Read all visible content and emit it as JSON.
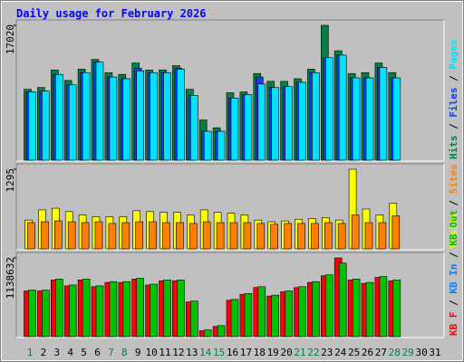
{
  "title": "Daily usage for February 2026",
  "chart_data": [
    {
      "type": "bar",
      "legend_separator": " / ",
      "ylim": [
        0,
        17020
      ],
      "yticks": [
        17020
      ],
      "series": [
        {
          "name": "Hits",
          "color": "#008040",
          "values": [
            8950,
            9170,
            11380,
            10060,
            11490,
            12710,
            11050,
            10830,
            12270,
            11380,
            11380,
            11930,
            8950,
            5080,
            4090,
            8510,
            8620,
            10940,
            9950,
            9950,
            10280,
            11490,
            17020,
            13810,
            10940,
            11050,
            12270,
            11050,
            null,
            null,
            null
          ]
        },
        {
          "name": "Files",
          "color": "#0040ff",
          "values": [
            8620,
            8730,
            10830,
            9500,
            11050,
            12380,
            10500,
            10280,
            11600,
            11050,
            11050,
            11600,
            8180,
            3650,
            3650,
            7850,
            8290,
            10500,
            9170,
            9280,
            9830,
            11050,
            12930,
            13260,
            10390,
            10390,
            11710,
            10390,
            null,
            null,
            null
          ]
        },
        {
          "name": "Pages",
          "color": "#00e0ff",
          "values": [
            8620,
            8730,
            10830,
            9500,
            11050,
            12380,
            10500,
            10280,
            11270,
            11050,
            11050,
            11490,
            8180,
            3650,
            3650,
            7850,
            8290,
            9610,
            9170,
            9280,
            9830,
            11050,
            12930,
            13260,
            10390,
            10390,
            11710,
            10390,
            null,
            null,
            null
          ]
        }
      ]
    },
    {
      "type": "bar",
      "legend_separator": " / ",
      "ylim": [
        0,
        1295
      ],
      "yticks": [
        1295
      ],
      "series": [
        {
          "name": "Visits",
          "color": "#ffff00",
          "values": [
            469,
            634,
            661,
            606,
            551,
            524,
            524,
            524,
            620,
            606,
            593,
            593,
            551,
            634,
            593,
            579,
            551,
            469,
            441,
            455,
            482,
            496,
            510,
            469,
            1295,
            648,
            551,
            744,
            null,
            null,
            null
          ]
        },
        {
          "name": "Sites",
          "color": "#ff8000",
          "values": [
            427,
            441,
            455,
            441,
            427,
            441,
            413,
            427,
            441,
            441,
            427,
            427,
            413,
            441,
            427,
            427,
            427,
            413,
            399,
            413,
            413,
            413,
            427,
            413,
            551,
            427,
            427,
            537,
            null,
            null,
            null
          ]
        }
      ]
    },
    {
      "type": "bar",
      "legend_separator": " / ",
      "ylim": [
        0,
        1138632
      ],
      "yticks": [
        1138632
      ],
      "categories": [
        "1",
        "2",
        "3",
        "4",
        "5",
        "6",
        "7",
        "8",
        "9",
        "10",
        "11",
        "12",
        "13",
        "14",
        "15",
        "16",
        "17",
        "18",
        "19",
        "20",
        "21",
        "22",
        "23",
        "24",
        "25",
        "26",
        "27",
        "28",
        "29",
        "30",
        "31"
      ],
      "category_colors": [
        "#008040",
        "#000000",
        "#000000",
        "#000000",
        "#000000",
        "#000000",
        "#008040",
        "#008040",
        "#000000",
        "#000000",
        "#000000",
        "#000000",
        "#000000",
        "#008040",
        "#008040",
        "#000000",
        "#000000",
        "#000000",
        "#000000",
        "#000000",
        "#008040",
        "#008040",
        "#000000",
        "#000000",
        "#000000",
        "#000000",
        "#000000",
        "#008040",
        "#008040",
        "#000000",
        "#000000"
      ],
      "series": [
        {
          "name": "KB F",
          "color": "#ff0000",
          "values": [
            661120,
            661120,
            820280,
            734580,
            820280,
            722340,
            783550,
            783550,
            832520,
            746820,
            808040,
            808040,
            501970,
            85700,
            146920,
            526450,
            612150,
            710100,
            587670,
            648880,
            710100,
            783550,
            881500,
            1138632,
            820280,
            771310,
            857010,
            808040,
            null,
            null,
            null
          ]
        },
        {
          "name": "KB In",
          "color": "#0080ff",
          "values": [
            null,
            null,
            null,
            null,
            null,
            null,
            null,
            null,
            null,
            null,
            null,
            null,
            null,
            null,
            null,
            null,
            null,
            null,
            null,
            null,
            null,
            null,
            null,
            null,
            null,
            null,
            null,
            null,
            null,
            null,
            null
          ]
        },
        {
          "name": "KB Out",
          "color": "#00c000",
          "values": [
            673370,
            673370,
            832520,
            746820,
            832520,
            734580,
            795800,
            795800,
            844770,
            759070,
            820280,
            820280,
            514210,
            97940,
            159160,
            538690,
            624390,
            722340,
            599910,
            661120,
            722340,
            795800,
            893740,
            1065140,
            832520,
            783550,
            869250,
            820280,
            null,
            null,
            null
          ]
        }
      ]
    }
  ]
}
